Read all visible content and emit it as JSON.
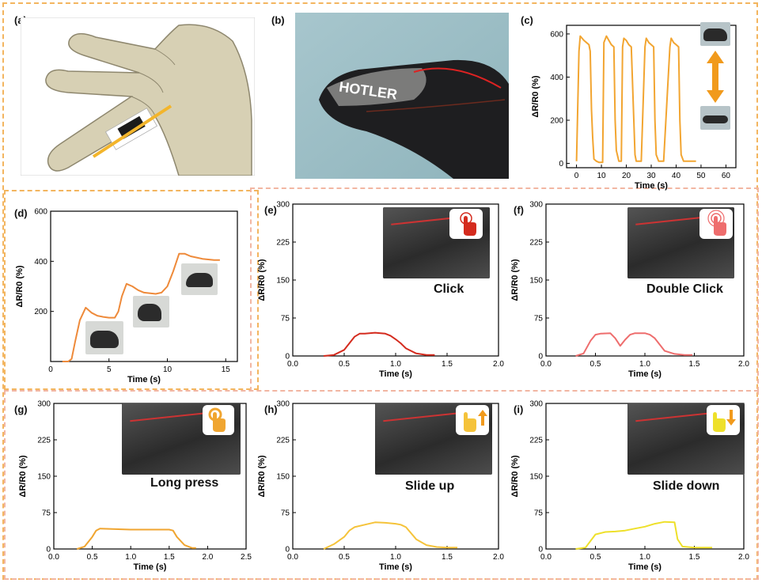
{
  "panel_labels": {
    "a": "(a)",
    "b": "(b)",
    "c": "(c)",
    "d": "(d)",
    "e": "(e)",
    "f": "(f)",
    "g": "(g)",
    "h": "(h)",
    "i": "(i)"
  },
  "gestures": {
    "e": "Click",
    "f": "Double Click",
    "g": "Long press",
    "h": "Slide up",
    "i": "Slide down"
  },
  "photo_text": "HOTLER",
  "colors": {
    "frame": "#f3b55f",
    "frame_inner": "#f2b6a2",
    "c_line": "#f2a531",
    "d_line": "#ee8a3a",
    "e_line": "#d42b1e",
    "f_line": "#ee6d6d",
    "g_line": "#f0a530",
    "h_line": "#f5c33a",
    "i_line": "#eee02a"
  },
  "icons": {
    "c": "double-arrow-icon",
    "e": "tap-hand-icon",
    "f": "double-tap-hand-icon",
    "g": "long-press-hand-icon",
    "h": "slide-up-hand-icon",
    "i": "slide-down-hand-icon"
  },
  "chart_data": [
    {
      "id": "c",
      "type": "line",
      "xlabel": "Time (s)",
      "ylabel": "ΔR/R0 (%)",
      "xlim": [
        -4,
        64
      ],
      "ylim": [
        -20,
        640
      ],
      "xticks": [
        0,
        10,
        20,
        30,
        40,
        50,
        60
      ],
      "yticks": [
        0,
        200,
        400,
        600
      ],
      "x": [
        0,
        1,
        1.5,
        3,
        4,
        5,
        5.5,
        6,
        6.5,
        7,
        8,
        9,
        10.5,
        11,
        12,
        13,
        14,
        15,
        15.5,
        16,
        17,
        18,
        18.5,
        19,
        20,
        21,
        22,
        23,
        23.5,
        24,
        25,
        26,
        27.5,
        28,
        29,
        30,
        31,
        31.5,
        32,
        33,
        34,
        35,
        37.5,
        38,
        39,
        40,
        41,
        41.5,
        42,
        43,
        44,
        46,
        46.5,
        48
      ],
      "y": [
        10,
        520,
        590,
        570,
        560,
        550,
        520,
        250,
        120,
        20,
        10,
        5,
        5,
        560,
        590,
        570,
        550,
        540,
        200,
        60,
        10,
        10,
        540,
        580,
        570,
        550,
        540,
        200,
        40,
        10,
        10,
        10,
        540,
        580,
        560,
        550,
        540,
        200,
        40,
        10,
        10,
        10,
        540,
        580,
        560,
        550,
        540,
        200,
        40,
        10,
        10,
        10,
        10,
        10
      ]
    },
    {
      "id": "d",
      "type": "line",
      "xlabel": "Time (s)",
      "ylabel": "ΔR/R0 (%)",
      "xlim": [
        0,
        16
      ],
      "ylim": [
        0,
        600
      ],
      "xticks": [
        0,
        5,
        10,
        15
      ],
      "yticks": [
        200,
        400,
        600
      ],
      "x": [
        1,
        1.5,
        1.8,
        2.1,
        2.5,
        3,
        3.5,
        4,
        4.5,
        5,
        5.5,
        5.8,
        6.1,
        6.5,
        7,
        7.5,
        8,
        9,
        9.5,
        10,
        10.5,
        11,
        11.5,
        12,
        13,
        14,
        14.5
      ],
      "y": [
        0,
        0,
        10,
        80,
        165,
        215,
        195,
        183,
        178,
        175,
        175,
        200,
        260,
        310,
        300,
        285,
        275,
        270,
        275,
        300,
        360,
        430,
        430,
        420,
        410,
        405,
        405
      ]
    },
    {
      "id": "e",
      "type": "line",
      "xlabel": "Time (s)",
      "ylabel": "ΔR/R0 (%)",
      "xlim": [
        0,
        2
      ],
      "ylim": [
        0,
        300
      ],
      "xticks": [
        0,
        0.5,
        1,
        1.5,
        2
      ],
      "xticklabels": [
        "0.0",
        "0.5",
        "1.0",
        "1.5",
        "2.0"
      ],
      "yticks": [
        0,
        75,
        150,
        225,
        300
      ],
      "x": [
        0.3,
        0.4,
        0.5,
        0.55,
        0.6,
        0.65,
        0.7,
        0.8,
        0.9,
        0.95,
        1,
        1.05,
        1.1,
        1.2,
        1.3,
        1.38
      ],
      "y": [
        0,
        2,
        12,
        25,
        38,
        44,
        44,
        46,
        44,
        40,
        33,
        25,
        15,
        5,
        2,
        2
      ]
    },
    {
      "id": "f",
      "type": "line",
      "xlabel": "Time (s)",
      "ylabel": "ΔR/R0 (%)",
      "xlim": [
        0,
        2
      ],
      "ylim": [
        0,
        300
      ],
      "xticks": [
        0,
        0.5,
        1,
        1.5,
        2
      ],
      "xticklabels": [
        "0.0",
        "0.5",
        "1.0",
        "1.5",
        "2.0"
      ],
      "yticks": [
        0,
        75,
        150,
        225,
        300
      ],
      "x": [
        0.3,
        0.38,
        0.45,
        0.5,
        0.55,
        0.65,
        0.7,
        0.75,
        0.8,
        0.85,
        0.9,
        1,
        1.05,
        1.1,
        1.2,
        1.3,
        1.4,
        1.48
      ],
      "y": [
        0,
        5,
        30,
        42,
        44,
        45,
        35,
        20,
        32,
        42,
        45,
        45,
        42,
        35,
        10,
        4,
        2,
        2
      ]
    },
    {
      "id": "g",
      "type": "line",
      "xlabel": "Time (s)",
      "ylabel": "ΔR/R0 (%)",
      "xlim": [
        0,
        2.5
      ],
      "ylim": [
        0,
        300
      ],
      "xticks": [
        0,
        0.5,
        1,
        1.5,
        2,
        2.5
      ],
      "xticklabels": [
        "0.0",
        "0.5",
        "1.0",
        "1.5",
        "2.0",
        "2.5"
      ],
      "yticks": [
        0,
        75,
        150,
        225,
        300
      ],
      "x": [
        0.3,
        0.4,
        0.5,
        0.55,
        0.6,
        0.8,
        1,
        1.2,
        1.4,
        1.5,
        1.55,
        1.6,
        1.7,
        1.8,
        1.85
      ],
      "y": [
        0,
        5,
        25,
        38,
        42,
        41,
        40,
        40,
        40,
        40,
        38,
        25,
        8,
        2,
        2
      ]
    },
    {
      "id": "h",
      "type": "line",
      "xlabel": "Time (s)",
      "ylabel": "ΔR/R0 (%)",
      "xlim": [
        0,
        2
      ],
      "ylim": [
        0,
        300
      ],
      "xticks": [
        0,
        0.5,
        1,
        1.5,
        2
      ],
      "xticklabels": [
        "0.0",
        "0.5",
        "1.0",
        "1.5",
        "2.0"
      ],
      "yticks": [
        0,
        75,
        150,
        225,
        300
      ],
      "x": [
        0.3,
        0.4,
        0.5,
        0.55,
        0.6,
        0.7,
        0.8,
        0.9,
        1,
        1.05,
        1.1,
        1.2,
        1.3,
        1.4,
        1.5,
        1.6
      ],
      "y": [
        0,
        10,
        25,
        38,
        45,
        50,
        55,
        54,
        52,
        50,
        45,
        20,
        8,
        4,
        3,
        3
      ]
    },
    {
      "id": "i",
      "type": "line",
      "xlabel": "Time (s)",
      "ylabel": "ΔR/R0 (%)",
      "xlim": [
        0,
        2
      ],
      "ylim": [
        0,
        300
      ],
      "xticks": [
        0,
        0.5,
        1,
        1.5,
        2
      ],
      "xticklabels": [
        "0.0",
        "0.5",
        "1.0",
        "1.5",
        "2.0"
      ],
      "yticks": [
        0,
        75,
        150,
        225,
        300
      ],
      "x": [
        0.3,
        0.4,
        0.5,
        0.6,
        0.7,
        0.8,
        0.9,
        1,
        1.1,
        1.2,
        1.3,
        1.33,
        1.38,
        1.5,
        1.6,
        1.68
      ],
      "y": [
        0,
        3,
        30,
        35,
        36,
        38,
        42,
        46,
        52,
        56,
        55,
        20,
        5,
        3,
        3,
        3
      ]
    }
  ]
}
